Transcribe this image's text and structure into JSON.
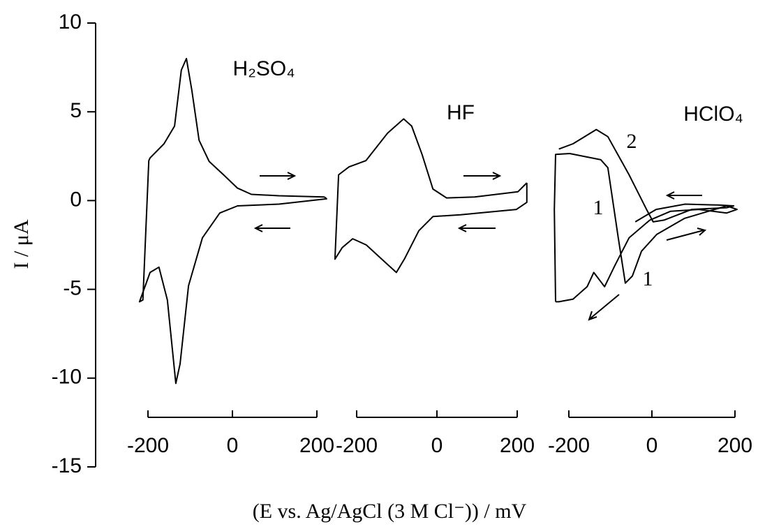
{
  "chart_data": [
    {
      "type": "line",
      "title": "H₂SO₄",
      "ylabel": "I / μA",
      "ylim": [
        -15,
        10
      ],
      "yticks": [
        -15,
        -10,
        -5,
        0,
        5,
        10
      ],
      "xlim": [
        -200,
        200
      ],
      "xticks": [
        -200,
        0,
        200
      ],
      "color": "#000000",
      "series": [
        {
          "x": [
            218,
            110,
            45,
            12,
            -21,
            -55,
            -79,
            -96,
            -109,
            -121,
            -137,
            -162,
            -195,
            -198,
            -212,
            -220,
            -195,
            -174,
            -154,
            -134,
            -124,
            -104,
            -71,
            -30,
            12,
            110,
            223,
            218
          ],
          "values": [
            0.2,
            0.27,
            0.35,
            0.7,
            1.45,
            2.2,
            3.4,
            6.2,
            8.0,
            7.35,
            4.2,
            3.2,
            2.4,
            2.25,
            -5.6,
            -5.7,
            -4.05,
            -3.75,
            -5.6,
            -10.3,
            -9.2,
            -4.8,
            -2.1,
            -0.7,
            -0.3,
            -0.2,
            0.1,
            0.2
          ]
        }
      ]
    },
    {
      "type": "line",
      "title": "HF",
      "xlabel": "(E  vs. Ag/AgCl (3 M Cl⁻)) / mV",
      "xlim": [
        -200,
        200
      ],
      "xticks": [
        -200,
        0,
        200
      ],
      "color": "#000000",
      "series": [
        {
          "x": [
            224,
            202,
            94,
            24,
            -10,
            -37,
            -63,
            -83,
            -123,
            -177,
            -219,
            -245,
            -254,
            -236,
            -210,
            -176,
            -123,
            -101,
            -80,
            -45,
            -10,
            59,
            129,
            198,
            224,
            224
          ],
          "values": [
            1.0,
            0.5,
            0.2,
            0.15,
            0.65,
            2.6,
            4.2,
            4.6,
            3.8,
            2.25,
            1.9,
            1.45,
            -3.3,
            -2.65,
            -2.15,
            -2.5,
            -3.6,
            -4.05,
            -3.25,
            -1.7,
            -0.9,
            -0.8,
            -0.65,
            -0.5,
            -0.1,
            1.0
          ]
        }
      ]
    },
    {
      "type": "line",
      "title": "HClO₄",
      "xlim": [
        -200,
        200
      ],
      "xticks": [
        -200,
        0,
        200
      ],
      "color": "#000000",
      "annotations": [
        "2",
        "1",
        "1"
      ],
      "series": [
        {
          "x": [
            -232,
            -235,
            -232,
            -198,
            -123,
            -106,
            -81,
            -64,
            -47,
            -25,
            12,
            79,
            180,
            205,
            180,
            113,
            45,
            -5,
            -55,
            -89,
            -114,
            -140,
            -156,
            -190,
            -224,
            -232
          ],
          "values": [
            -5.7,
            -0.5,
            2.6,
            2.65,
            2.3,
            1.85,
            -2.1,
            -4.65,
            -4.25,
            -2.85,
            -1.9,
            -1.0,
            -0.3,
            -0.5,
            -0.7,
            -0.5,
            -0.6,
            -1.1,
            -2.1,
            -3.65,
            -4.85,
            -4.05,
            -4.85,
            -5.55,
            -5.7,
            -5.7
          ]
        },
        {
          "x": [
            -224,
            -190,
            -134,
            -106,
            -55,
            -13,
            3,
            29,
            96,
            180,
            197,
            160,
            80,
            10,
            -40
          ],
          "values": [
            2.9,
            3.2,
            4.0,
            3.6,
            1.45,
            -0.5,
            -1.2,
            -1.1,
            -0.5,
            -0.4,
            -0.3,
            -0.25,
            -0.2,
            -0.5,
            -1.2
          ]
        }
      ]
    }
  ]
}
